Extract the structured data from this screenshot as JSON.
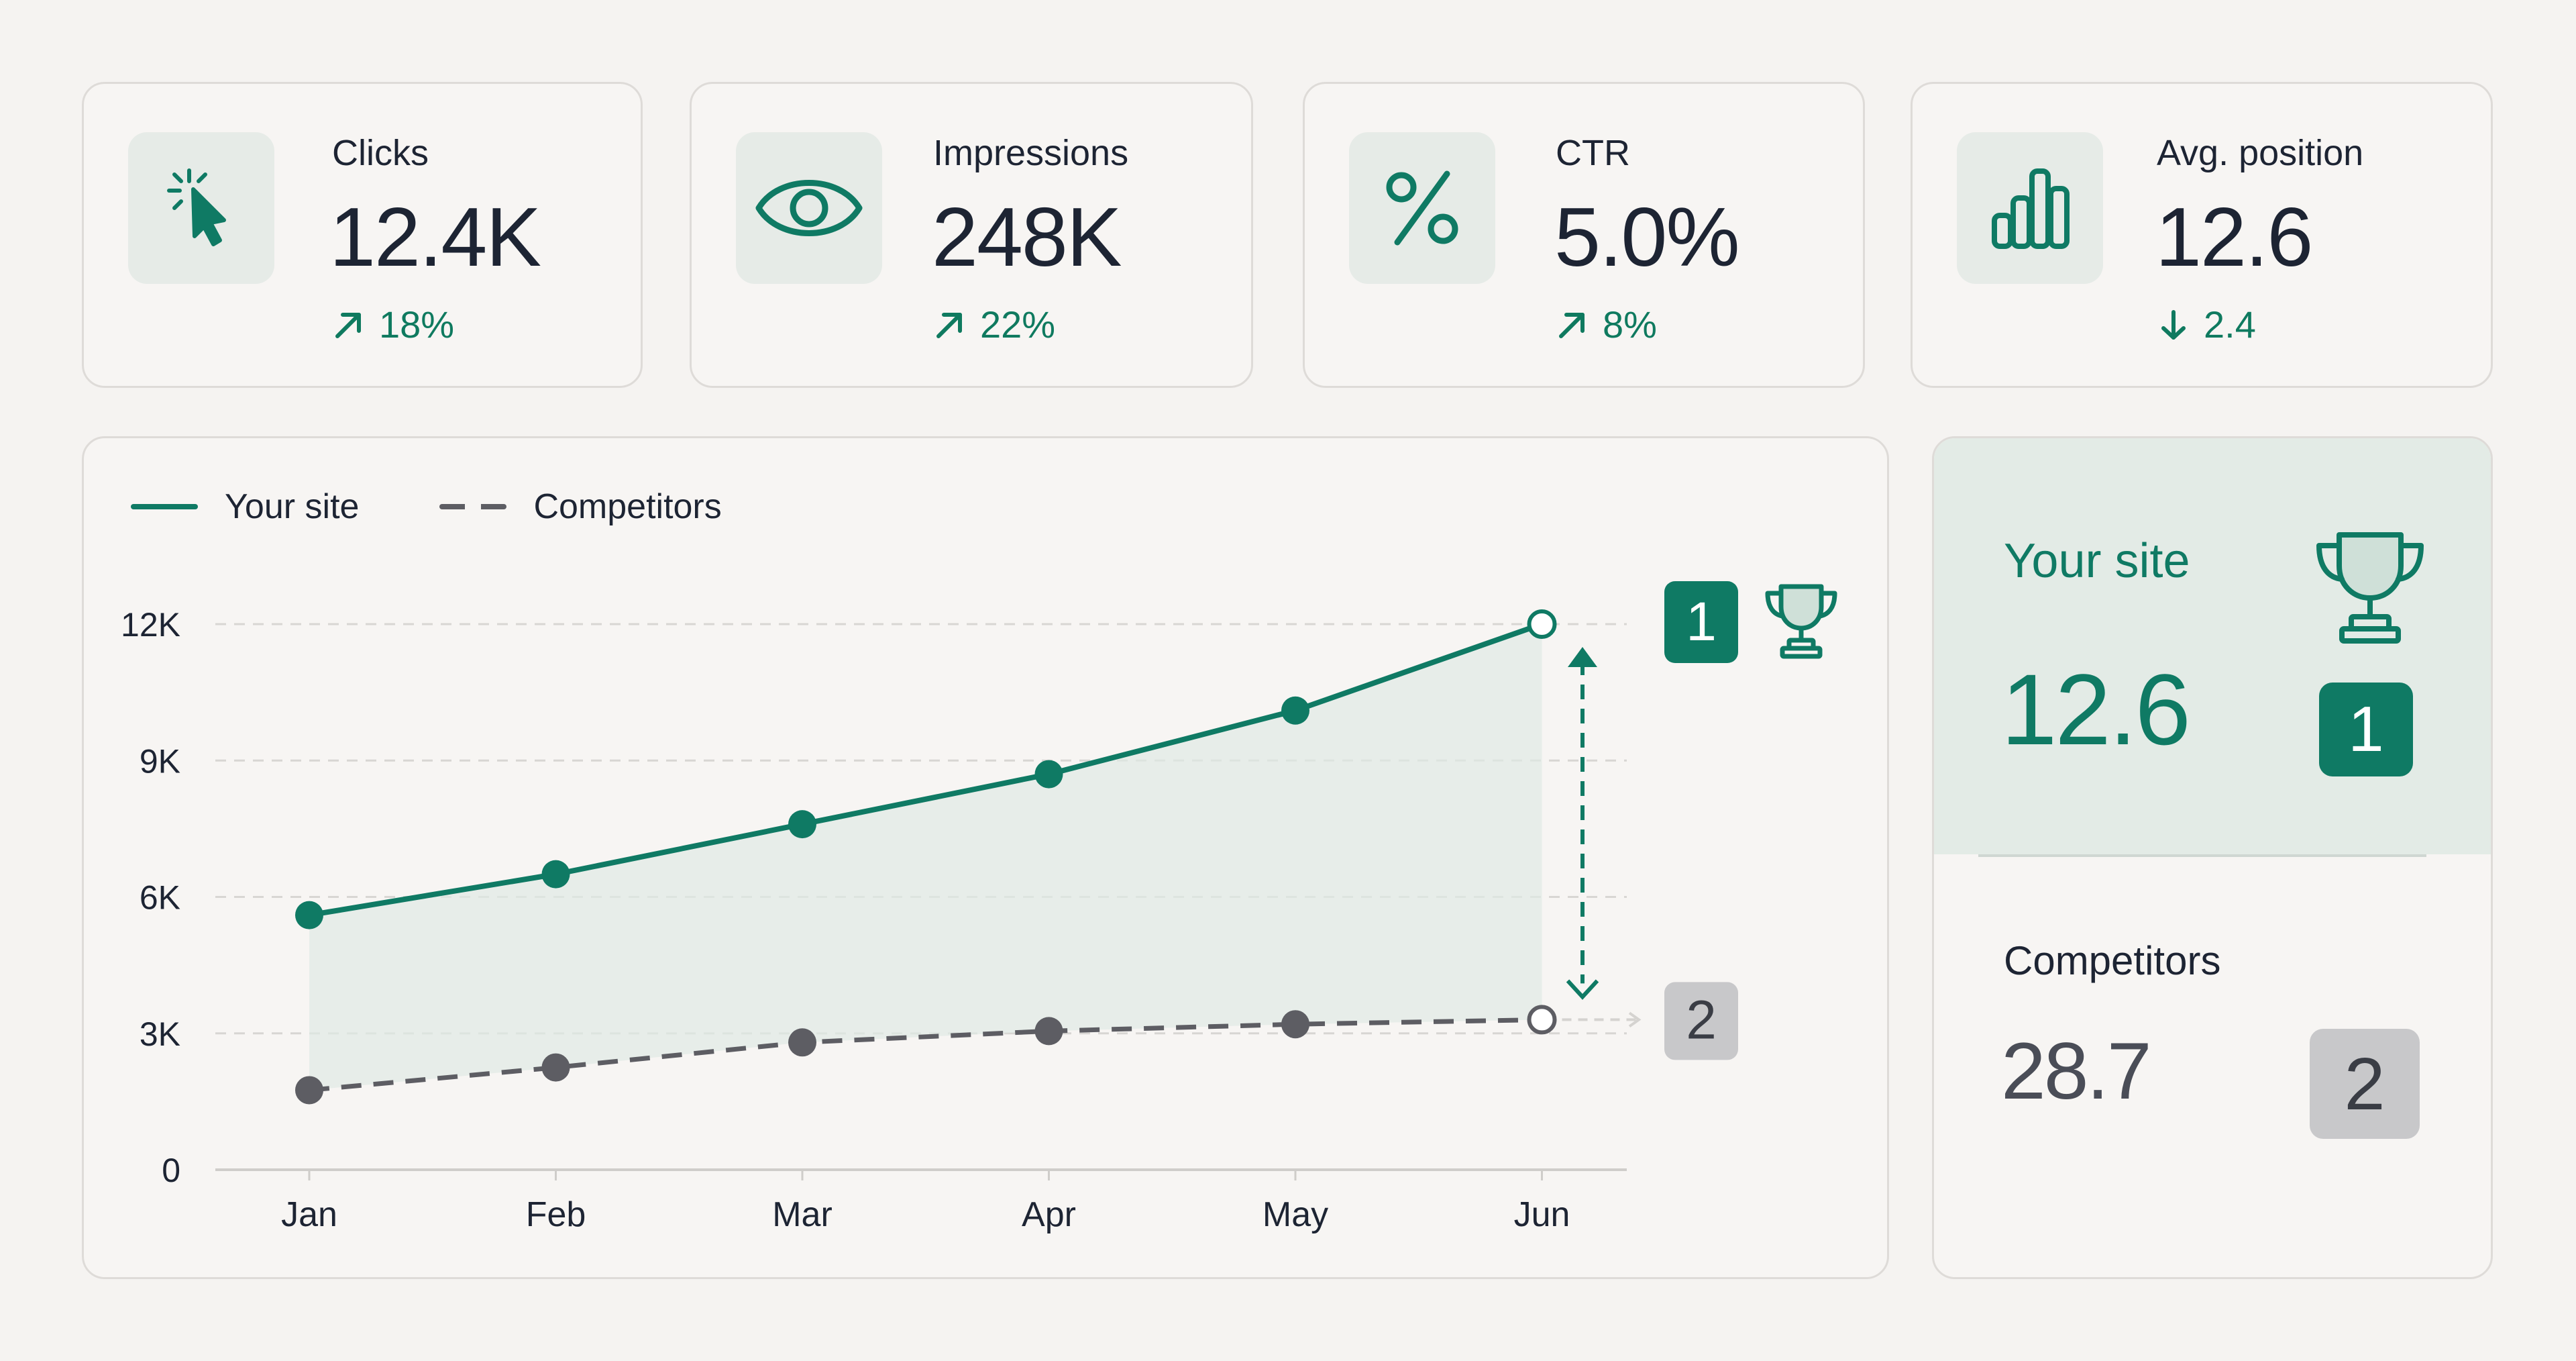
{
  "kpis": [
    {
      "label": "Clicks",
      "value": "12.4K",
      "delta": "18%",
      "direction": "up",
      "icon": "cursor-click-icon"
    },
    {
      "label": "Impressions",
      "value": "248K",
      "delta": "22%",
      "direction": "up",
      "icon": "eye-icon"
    },
    {
      "label": "CTR",
      "value": "5.0%",
      "delta": "8%",
      "direction": "up",
      "icon": "percent-icon"
    },
    {
      "label": "Avg. position",
      "value": "12.6",
      "delta": "2.4",
      "direction": "down",
      "icon": "bar-chart-icon"
    }
  ],
  "legend": {
    "your_site": "Your site",
    "competitors": "Competitors"
  },
  "chart_data": {
    "type": "line",
    "categories": [
      "Jan",
      "Feb",
      "Mar",
      "Apr",
      "May",
      "Jun"
    ],
    "y_ticks": [
      "0",
      "3K",
      "6K",
      "9K",
      "12K"
    ],
    "ylim": [
      0,
      12000
    ],
    "series": [
      {
        "name": "Your site",
        "values": [
          5600,
          6500,
          7600,
          8700,
          10100,
          12000
        ],
        "style": "solid",
        "color": "#0f7a64"
      },
      {
        "name": "Competitors",
        "values": [
          1750,
          2250,
          2800,
          3050,
          3200,
          3300
        ],
        "style": "dashed",
        "color": "#5d5d63"
      }
    ],
    "grid": true,
    "rank_labels": {
      "your_site": "1",
      "competitors": "2"
    }
  },
  "summary": {
    "your_site": {
      "label": "Your site",
      "value": "12.6",
      "rank": "1"
    },
    "competitors": {
      "label": "Competitors",
      "value": "28.7",
      "rank": "2"
    }
  },
  "colors": {
    "accent": "#0f7a64",
    "up": "#0f7a5f",
    "muted": "#5d5d63",
    "badge_gray": "#c8c8ca"
  }
}
